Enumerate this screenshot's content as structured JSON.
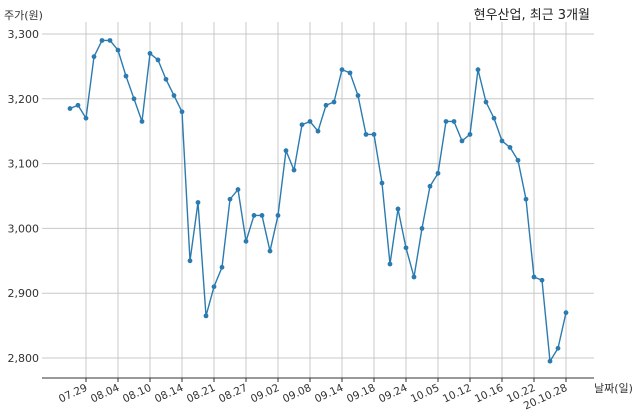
{
  "chart_data": {
    "type": "line",
    "title": "현우산업, 최근 3개월",
    "ylabel": "주가(원)",
    "xlabel": "날짜(일)",
    "ylim": [
      2770,
      3320
    ],
    "yticks": [
      2800,
      2900,
      3000,
      3100,
      3200,
      3300
    ],
    "ytick_labels": [
      "2,800",
      "2,900",
      "3,000",
      "3,100",
      "3,200",
      "3,300"
    ],
    "xtick_labels": [
      "07.29",
      "08.04",
      "08.10",
      "08.14",
      "08.21",
      "08.27",
      "09.02",
      "09.08",
      "09.14",
      "09.18",
      "09.24",
      "10.05",
      "10.12",
      "10.16",
      "10.22",
      "20.10.28"
    ],
    "xtick_indices": [
      2,
      6,
      10,
      14,
      18,
      22,
      26,
      30,
      34,
      38,
      42,
      46,
      50,
      54,
      58,
      62
    ],
    "grid": true,
    "color": "#2b7bb0",
    "series": [
      {
        "values": [
          3185,
          3190,
          3170,
          3265,
          3290,
          3290,
          3275,
          3235,
          3200,
          3165,
          3270,
          3260,
          3230,
          3205,
          3180,
          2950,
          3040,
          2865,
          2910,
          2940,
          3045,
          3060,
          2980,
          3020,
          3020,
          2965,
          3020,
          3120,
          3090,
          3160,
          3165,
          3150,
          3190,
          3195,
          3245,
          3240,
          3205,
          3145,
          3145,
          3070,
          2945,
          3030,
          2970,
          2925,
          3000,
          3065,
          3085,
          3165,
          3165,
          3135,
          3145,
          3245,
          3195,
          3170,
          3135,
          3125,
          3105,
          3045,
          2925,
          2920,
          2795,
          2815,
          2870
        ]
      }
    ]
  }
}
